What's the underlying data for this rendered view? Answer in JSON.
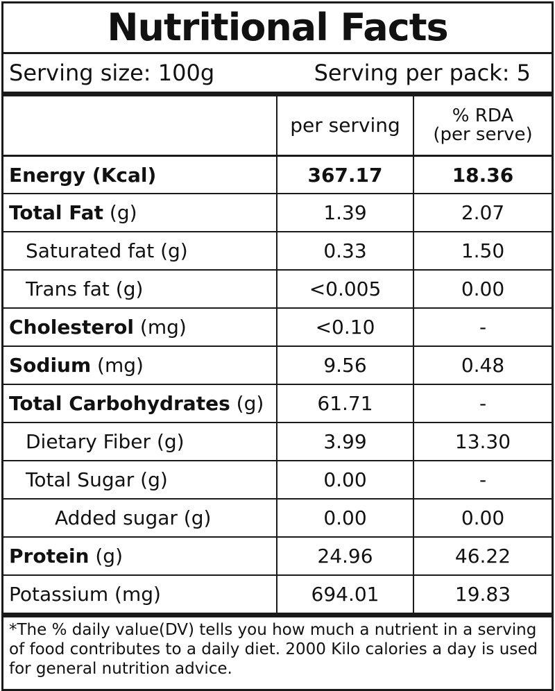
{
  "title": "Nutritional Facts",
  "serving_size": "Serving size: 100g",
  "serving_per_pack": "Serving per pack: 5",
  "columns": {
    "per_serving": "per serving",
    "rda_line1": "% RDA",
    "rda_line2": "(per serve)"
  },
  "rows": [
    {
      "name": "Energy (Kcal)",
      "bold": "",
      "unit": "",
      "per_serving": "367.17",
      "rda": "18.36"
    },
    {
      "name": "",
      "bold": "Total Fat",
      "unit": " (g)",
      "per_serving": "1.39",
      "rda": "2.07"
    },
    {
      "name": "Saturated fat (g)",
      "bold": "",
      "unit": "",
      "per_serving": "0.33",
      "rda": "1.50"
    },
    {
      "name": "Trans fat (g)",
      "bold": "",
      "unit": "",
      "per_serving": "<0.005",
      "rda": "0.00"
    },
    {
      "name": "",
      "bold": "Cholesterol",
      "unit": " (mg)",
      "per_serving": "<0.10",
      "rda": "-"
    },
    {
      "name": "",
      "bold": "Sodium",
      "unit": " (mg)",
      "per_serving": "9.56",
      "rda": "0.48"
    },
    {
      "name": "",
      "bold": "Total Carbohydrates",
      "unit": " (g)",
      "per_serving": "61.71",
      "rda": "-"
    },
    {
      "name": "Dietary Fiber (g)",
      "bold": "",
      "unit": "",
      "per_serving": "3.99",
      "rda": "13.30"
    },
    {
      "name": "Total Sugar (g)",
      "bold": "",
      "unit": "",
      "per_serving": "0.00",
      "rda": "-"
    },
    {
      "name": "Added sugar (g)",
      "bold": "",
      "unit": "",
      "per_serving": "0.00",
      "rda": "0.00"
    },
    {
      "name": "",
      "bold": "Protein",
      "unit": " (g)",
      "per_serving": "24.96",
      "rda": "46.22"
    },
    {
      "name": "Potassium (mg)",
      "bold": "",
      "unit": "",
      "per_serving": "694.01",
      "rda": "19.83"
    }
  ],
  "footnote": "*The % daily value(DV) tells you how much a nutrient in a serving of food contributes to a daily diet. 2000 Kilo calories a day is used for general nutrition advice."
}
